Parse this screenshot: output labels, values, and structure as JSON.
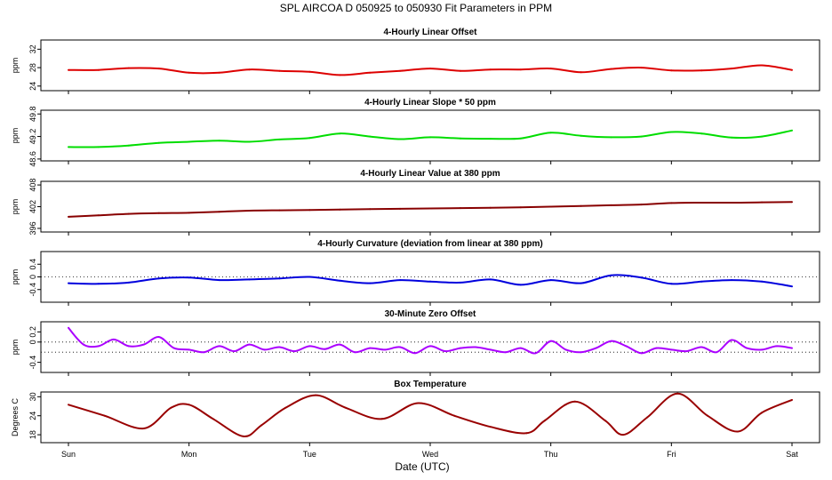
{
  "figure": {
    "title": "SPL   AIRCOA D   050925 to 050930   Fit Parameters in PPM",
    "xlabel": "Date (UTC)",
    "day_labels": [
      "Sun",
      "Mon",
      "Tue",
      "Wed",
      "Thu",
      "Fri",
      "Sat"
    ]
  },
  "chart_data": [
    {
      "type": "line",
      "title": "4-Hourly Linear Offset",
      "ylabel": "ppm",
      "yticks": [
        "24",
        "28",
        "32"
      ],
      "ylim": [
        23,
        34
      ],
      "color": "#dd0000",
      "x": [
        0,
        0.25,
        0.5,
        0.75,
        1,
        1.25,
        1.5,
        1.75,
        2,
        2.25,
        2.5,
        2.75,
        3,
        3.25,
        3.5,
        3.75,
        4,
        4.25,
        4.5,
        4.75,
        5,
        5.25,
        5.5,
        5.75,
        6
      ],
      "values": [
        27.5,
        27.5,
        27.9,
        27.8,
        26.9,
        26.9,
        27.6,
        27.3,
        27.1,
        26.4,
        26.9,
        27.3,
        27.8,
        27.3,
        27.6,
        27.6,
        27.8,
        27.0,
        27.7,
        28.0,
        27.4,
        27.4,
        27.8,
        28.5,
        27.5
      ]
    },
    {
      "type": "line",
      "title": "4-Hourly Linear Slope * 50 ppm",
      "ylabel": "ppm",
      "yticks": [
        "48.6",
        "49.2",
        "49.8"
      ],
      "ylim": [
        48.55,
        49.9
      ],
      "color": "#00dd00",
      "x": [
        0,
        0.25,
        0.5,
        0.75,
        1,
        1.25,
        1.5,
        1.75,
        2,
        2.25,
        2.5,
        2.75,
        3,
        3.25,
        3.5,
        3.75,
        4,
        4.25,
        4.5,
        4.75,
        5,
        5.25,
        5.5,
        5.75,
        6
      ],
      "values": [
        48.92,
        48.92,
        48.96,
        49.03,
        49.06,
        49.09,
        49.06,
        49.12,
        49.16,
        49.28,
        49.2,
        49.13,
        49.18,
        49.15,
        49.14,
        49.15,
        49.3,
        49.22,
        49.18,
        49.2,
        49.32,
        49.28,
        49.17,
        49.2,
        49.36
      ]
    },
    {
      "type": "line",
      "title": "4-Hourly Linear Value at 380 ppm",
      "ylabel": "ppm",
      "yticks": [
        "396",
        "402",
        "408"
      ],
      "ylim": [
        395,
        409
      ],
      "color": "#880000",
      "x": [
        0,
        0.25,
        0.5,
        0.75,
        1,
        1.25,
        1.5,
        1.75,
        2,
        2.25,
        2.5,
        2.75,
        3,
        3.25,
        3.5,
        3.75,
        4,
        4.25,
        4.5,
        4.75,
        5,
        5.25,
        5.5,
        5.75,
        6
      ],
      "values": [
        399.2,
        399.6,
        400.0,
        400.2,
        400.3,
        400.6,
        400.9,
        401.0,
        401.1,
        401.2,
        401.3,
        401.4,
        401.5,
        401.6,
        401.7,
        401.8,
        402.0,
        402.2,
        402.4,
        402.6,
        403.0,
        403.1,
        403.1,
        403.2,
        403.3
      ]
    },
    {
      "type": "line",
      "title": "4-Hourly Curvature (deviation from linear at 380 ppm)",
      "ylabel": "ppm",
      "yticks": [
        "-0.4",
        "0",
        "0.4"
      ],
      "ylim": [
        -0.8,
        0.8
      ],
      "reference_line": 0,
      "color": "#0000dd",
      "x": [
        0,
        0.25,
        0.5,
        0.75,
        1,
        1.25,
        1.5,
        1.75,
        2,
        2.25,
        2.5,
        2.75,
        3,
        3.25,
        3.5,
        3.75,
        4,
        4.25,
        4.5,
        4.75,
        5,
        5.25,
        5.5,
        5.75,
        6
      ],
      "values": [
        -0.2,
        -0.22,
        -0.18,
        -0.05,
        -0.02,
        -0.1,
        -0.08,
        -0.05,
        0.0,
        -0.12,
        -0.2,
        -0.1,
        -0.15,
        -0.18,
        -0.08,
        -0.25,
        -0.1,
        -0.2,
        0.05,
        -0.02,
        -0.22,
        -0.15,
        -0.1,
        -0.15,
        -0.3
      ]
    },
    {
      "type": "line",
      "title": "30-Minute Zero Offset",
      "ylabel": "ppm",
      "yticks": [
        "-0.4",
        "0",
        "0.2"
      ],
      "ylim": [
        -0.6,
        0.4
      ],
      "reference_lines": [
        0,
        -0.2
      ],
      "color": "#aa00ff",
      "x": [
        0,
        0.125,
        0.25,
        0.375,
        0.5,
        0.625,
        0.75,
        0.875,
        1,
        1.125,
        1.25,
        1.375,
        1.5,
        1.625,
        1.75,
        1.875,
        2,
        2.125,
        2.25,
        2.375,
        2.5,
        2.625,
        2.75,
        2.875,
        3,
        3.125,
        3.25,
        3.375,
        3.5,
        3.625,
        3.75,
        3.875,
        4,
        4.125,
        4.25,
        4.375,
        4.5,
        4.625,
        4.75,
        4.875,
        5,
        5.125,
        5.25,
        5.375,
        5.5,
        5.625,
        5.75,
        5.875,
        6
      ],
      "values": [
        0.28,
        -0.05,
        -0.08,
        0.05,
        -0.08,
        -0.05,
        0.1,
        -0.12,
        -0.15,
        -0.2,
        -0.08,
        -0.18,
        -0.05,
        -0.15,
        -0.1,
        -0.18,
        -0.08,
        -0.14,
        -0.05,
        -0.2,
        -0.12,
        -0.15,
        -0.1,
        -0.22,
        -0.08,
        -0.18,
        -0.12,
        -0.1,
        -0.15,
        -0.2,
        -0.12,
        -0.22,
        0.02,
        -0.15,
        -0.2,
        -0.12,
        0.02,
        -0.08,
        -0.22,
        -0.12,
        -0.15,
        -0.18,
        -0.1,
        -0.2,
        0.04,
        -0.12,
        -0.15,
        -0.08,
        -0.12
      ]
    },
    {
      "type": "line",
      "title": "Box Temperature",
      "ylabel": "Degrees C",
      "yticks": [
        "18",
        "24",
        "30"
      ],
      "ylim": [
        15.5,
        31.5
      ],
      "color": "#990000",
      "x": [
        0,
        0.3,
        0.625,
        0.85,
        1.0,
        1.2,
        1.45,
        1.6,
        1.8,
        2.05,
        2.3,
        2.6,
        2.9,
        3.2,
        3.5,
        3.8,
        3.95,
        4.2,
        4.45,
        4.6,
        4.8,
        5.05,
        5.3,
        5.55,
        5.75,
        6.0
      ],
      "values": [
        27.5,
        24.0,
        20.0,
        26.5,
        27.5,
        23.0,
        17.5,
        21.0,
        26.5,
        30.5,
        26.5,
        23.0,
        28.0,
        24.0,
        20.5,
        18.5,
        22.5,
        28.5,
        22.5,
        18.0,
        23.5,
        31.0,
        24.0,
        19.0,
        25.0,
        29.0
      ]
    }
  ]
}
